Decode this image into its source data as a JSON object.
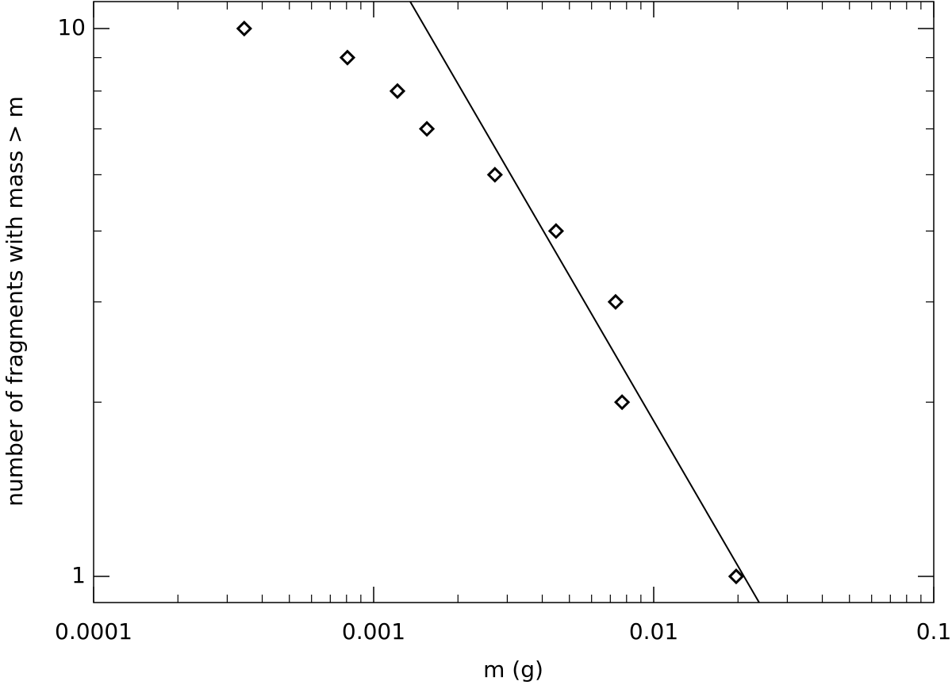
{
  "chart_data": {
    "type": "scatter",
    "xlabel": "m (g)",
    "ylabel": "number of fragments with mass > m",
    "log_x": true,
    "log_y": true,
    "xlim": [
      0.0001,
      0.1
    ],
    "xticks": [
      0.0001,
      0.001,
      0.01,
      0.1
    ],
    "ylim": [
      0.896,
      11.2
    ],
    "yticks": [
      1,
      10
    ],
    "yminorticks": [
      2.08,
      3.17,
      4.27,
      5.41,
      6.56,
      7.69,
      8.85
    ],
    "series": [
      {
        "style": "markers",
        "marker": "diamond",
        "color": "#000000",
        "x": [
          0.000345,
          0.000806,
          0.001216,
          0.001549,
          0.00271,
          0.00448,
          0.00731,
          0.00771,
          0.0197
        ],
        "values": [
          10,
          8.85,
          7.69,
          6.56,
          5.41,
          4.27,
          3.17,
          2.08,
          1
        ]
      },
      {
        "style": "line",
        "color": "#000000",
        "x": [
          0.00135,
          0.0238
        ],
        "values": [
          11.2,
          0.896
        ]
      }
    ]
  }
}
